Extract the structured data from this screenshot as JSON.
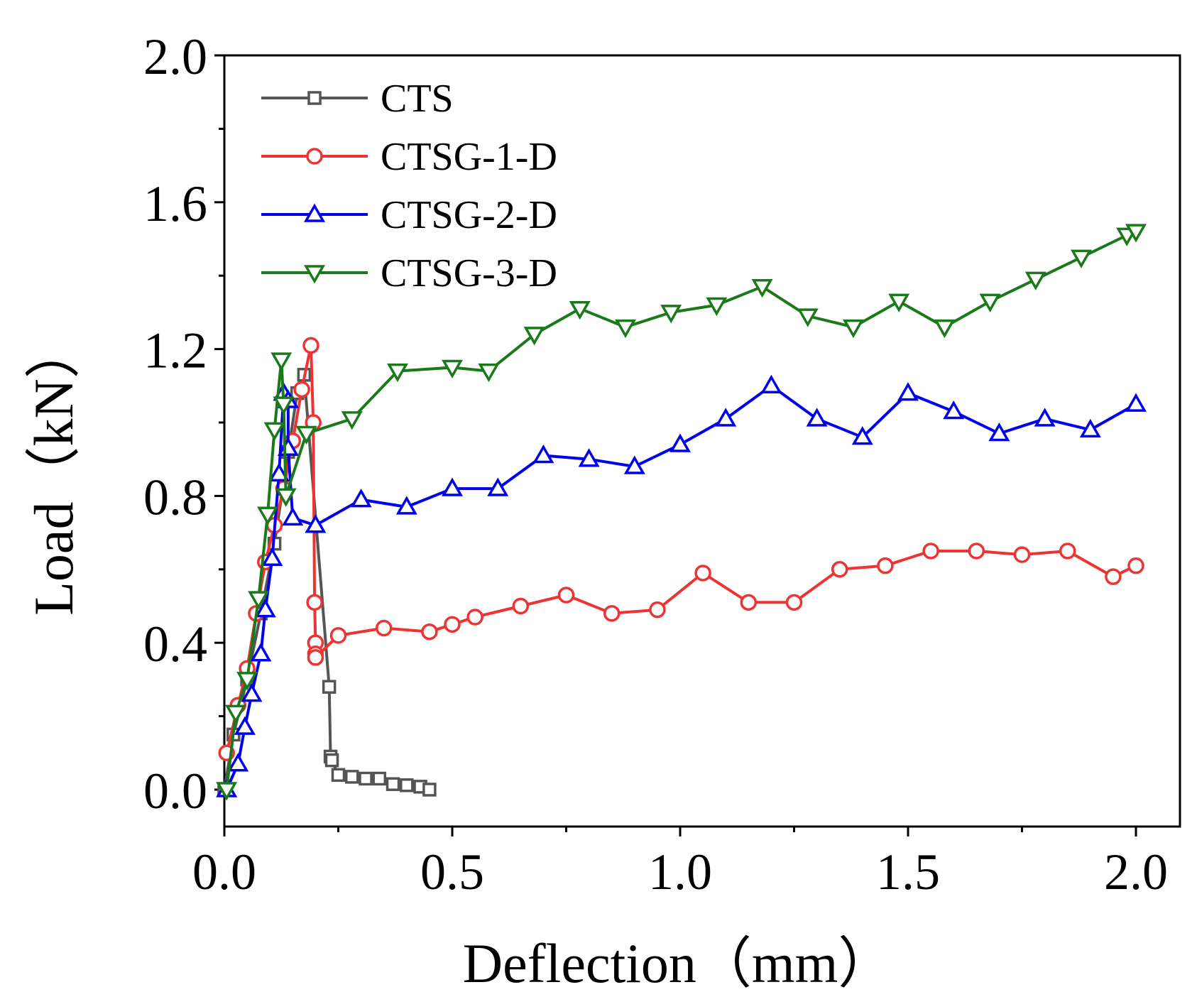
{
  "chart_data": {
    "type": "line",
    "xlabel": "Deflection（mm）",
    "ylabel": "Load（kN）",
    "xlim": [
      0,
      2.1
    ],
    "ylim": [
      -0.1,
      2.0
    ],
    "x_ticks": [
      "0.0",
      "0.5",
      "1.0",
      "1.5",
      "2.0"
    ],
    "y_ticks": [
      "0.0",
      "0.4",
      "0.8",
      "1.2",
      "1.6",
      "2.0"
    ],
    "legend_position": "top-left",
    "series": [
      {
        "name": "CTS",
        "color": "#555555",
        "marker": "square",
        "x": [
          0,
          0.02,
          0.05,
          0.08,
          0.11,
          0.14,
          0.16,
          0.175,
          0.23,
          0.233,
          0.236,
          0.25,
          0.28,
          0.31,
          0.34,
          0.37,
          0.4,
          0.43,
          0.45
        ],
        "y": [
          0,
          0.15,
          0.3,
          0.48,
          0.67,
          0.92,
          1.08,
          1.13,
          0.28,
          0.09,
          0.08,
          0.04,
          0.035,
          0.03,
          0.03,
          0.015,
          0.012,
          0.008,
          0.0
        ]
      },
      {
        "name": "CTSG-1-D",
        "color": "#ee3333",
        "marker": "circle",
        "x": [
          0.005,
          0.03,
          0.05,
          0.07,
          0.09,
          0.11,
          0.13,
          0.15,
          0.17,
          0.19,
          0.195,
          0.198,
          0.2,
          0.2,
          0.2,
          0.25,
          0.35,
          0.45,
          0.5,
          0.55,
          0.65,
          0.75,
          0.85,
          0.95,
          1.05,
          1.15,
          1.25,
          1.35,
          1.45,
          1.55,
          1.65,
          1.75,
          1.85,
          1.95,
          2.0
        ],
        "y": [
          0.1,
          0.23,
          0.33,
          0.48,
          0.62,
          0.72,
          0.82,
          0.95,
          1.09,
          1.21,
          1.0,
          0.51,
          0.4,
          0.37,
          0.36,
          0.42,
          0.44,
          0.43,
          0.45,
          0.47,
          0.5,
          0.53,
          0.48,
          0.49,
          0.59,
          0.51,
          0.51,
          0.6,
          0.61,
          0.65,
          0.65,
          0.64,
          0.65,
          0.58,
          0.61
        ]
      },
      {
        "name": "CTSG-2-D",
        "color": "#0000ee",
        "marker": "triangle-up",
        "x": [
          0.005,
          0.03,
          0.045,
          0.06,
          0.08,
          0.09,
          0.105,
          0.12,
          0.13,
          0.14,
          0.14,
          0.15,
          0.2,
          0.3,
          0.4,
          0.5,
          0.6,
          0.7,
          0.8,
          0.9,
          1.0,
          1.1,
          1.2,
          1.3,
          1.4,
          1.5,
          1.6,
          1.7,
          1.8,
          1.9,
          2.0
        ],
        "y": [
          0.0,
          0.07,
          0.17,
          0.26,
          0.37,
          0.49,
          0.63,
          0.86,
          1.08,
          1.06,
          0.93,
          0.74,
          0.72,
          0.79,
          0.77,
          0.82,
          0.82,
          0.91,
          0.9,
          0.88,
          0.94,
          1.01,
          1.1,
          1.01,
          0.96,
          1.08,
          1.03,
          0.97,
          1.01,
          0.98,
          1.05
        ]
      },
      {
        "name": "CTSG-3-D",
        "color": "#1a7a1a",
        "marker": "triangle-down",
        "x": [
          0.005,
          0.025,
          0.05,
          0.075,
          0.095,
          0.11,
          0.125,
          0.13,
          0.135,
          0.18,
          0.28,
          0.38,
          0.5,
          0.58,
          0.68,
          0.78,
          0.88,
          0.98,
          1.08,
          1.18,
          1.28,
          1.38,
          1.48,
          1.58,
          1.68,
          1.78,
          1.88,
          1.98,
          2.0
        ],
        "y": [
          0.0,
          0.21,
          0.3,
          0.52,
          0.75,
          0.98,
          1.17,
          1.05,
          0.8,
          0.97,
          1.01,
          1.14,
          1.15,
          1.14,
          1.24,
          1.31,
          1.26,
          1.3,
          1.32,
          1.37,
          1.29,
          1.26,
          1.33,
          1.26,
          1.33,
          1.39,
          1.45,
          1.51,
          1.52
        ]
      }
    ]
  }
}
